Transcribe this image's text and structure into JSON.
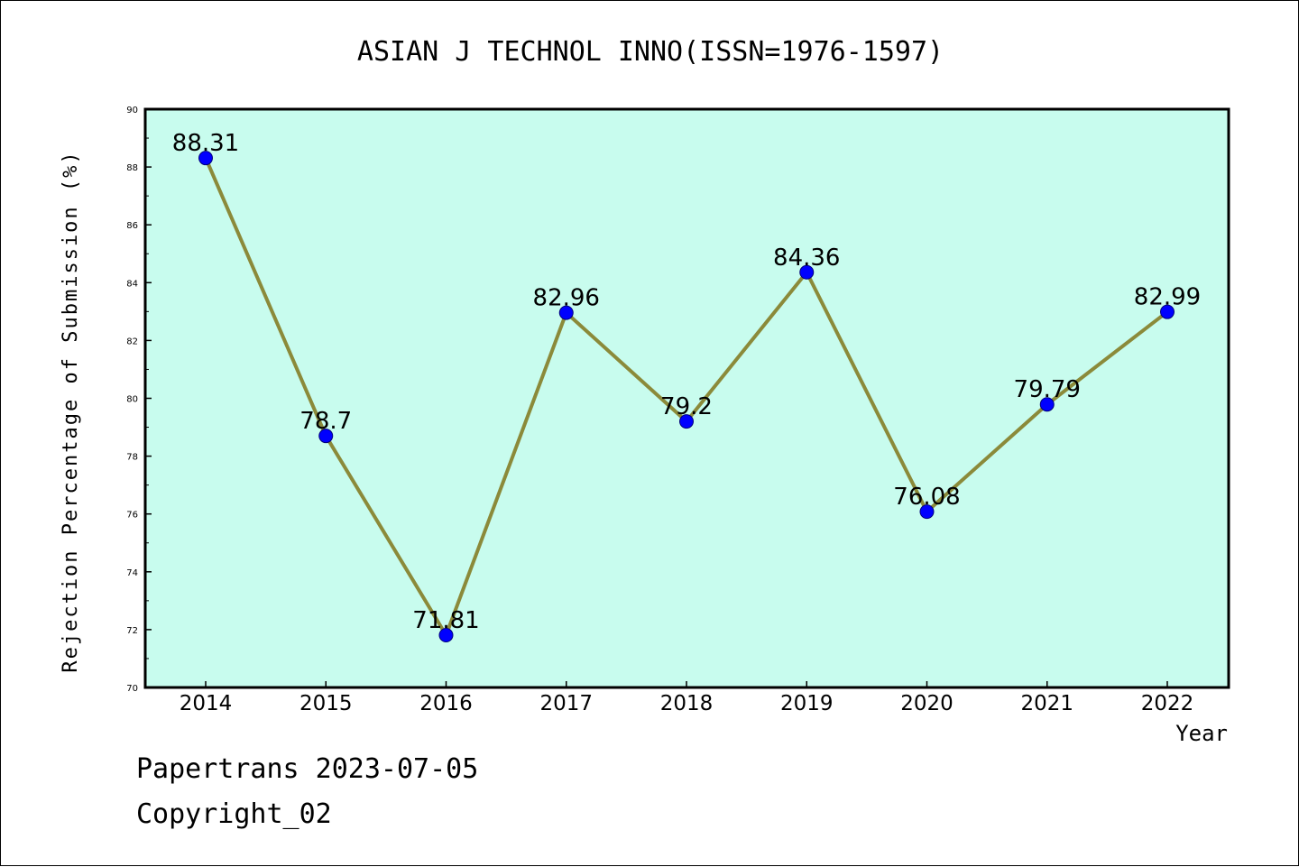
{
  "chart_data": {
    "type": "line",
    "title": "ASIAN J TECHNOL INNO(ISSN=1976-1597)",
    "xlabel": "Year",
    "ylabel": "Rejection Percentage of Submission (%)",
    "categories": [
      "2014",
      "2015",
      "2016",
      "2017",
      "2018",
      "2019",
      "2020",
      "2021",
      "2022"
    ],
    "series": [
      {
        "values": [
          88.31,
          78.7,
          71.81,
          82.96,
          79.2,
          84.36,
          76.08,
          79.79,
          82.99
        ],
        "labels": [
          "88.31",
          "78.7",
          "71.81",
          "82.96",
          "79.2",
          "84.36",
          "76.08",
          "79.79",
          "82.99"
        ]
      }
    ],
    "ylim": [
      70,
      90
    ],
    "yticks": [
      "70",
      "72",
      "74",
      "76",
      "78",
      "80",
      "82",
      "84",
      "86",
      "88",
      "90"
    ],
    "grid": false,
    "legend": "none"
  },
  "colors": {
    "plot_background": "#c8fcee",
    "line": "#8b8a3a",
    "marker": "#0000ff",
    "axis": "#000000"
  },
  "footer": {
    "line1": "Papertrans 2023-07-05",
    "line2": "Copyright_02"
  }
}
